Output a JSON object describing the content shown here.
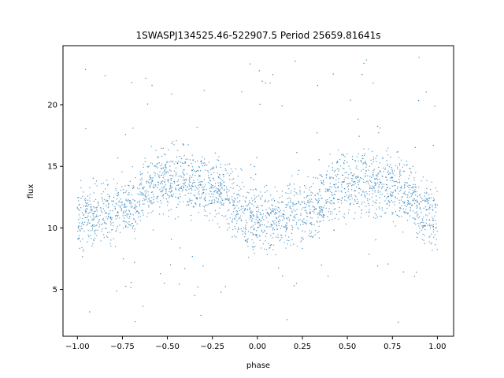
{
  "chart_data": {
    "type": "scatter",
    "title": "1SWASPJ134525.46-522907.5 Period 25659.81641s",
    "xlabel": "phase",
    "ylabel": "flux",
    "xlim": [
      -1.08,
      1.09
    ],
    "ylim": [
      1.2,
      24.8
    ],
    "xticks": [
      -1.0,
      -0.75,
      -0.5,
      -0.25,
      0.0,
      0.25,
      0.5,
      0.75,
      1.0
    ],
    "xtick_labels": [
      "−1.00",
      "−0.75",
      "−0.50",
      "−0.25",
      "0.00",
      "0.25",
      "0.50",
      "0.75",
      "1.00"
    ],
    "yticks": [
      5,
      10,
      15,
      20
    ],
    "ytick_labels": [
      "5",
      "10",
      "15",
      "20"
    ],
    "grid": false,
    "point_color": "#1f77b4",
    "series": [
      {
        "phase_range": [
          -1.0,
          1.0
        ],
        "trend": {
          "phase": [
            -1.0,
            -0.75,
            -0.5,
            -0.25,
            0.0,
            0.25,
            0.5,
            0.75,
            1.0
          ],
          "flux": [
            10.8,
            11.6,
            14.0,
            13.3,
            10.6,
            11.2,
            13.6,
            13.4,
            10.8
          ]
        },
        "band_halfwidth": 2.5,
        "outlier_range": [
          2.3,
          23.9
        ]
      }
    ]
  }
}
